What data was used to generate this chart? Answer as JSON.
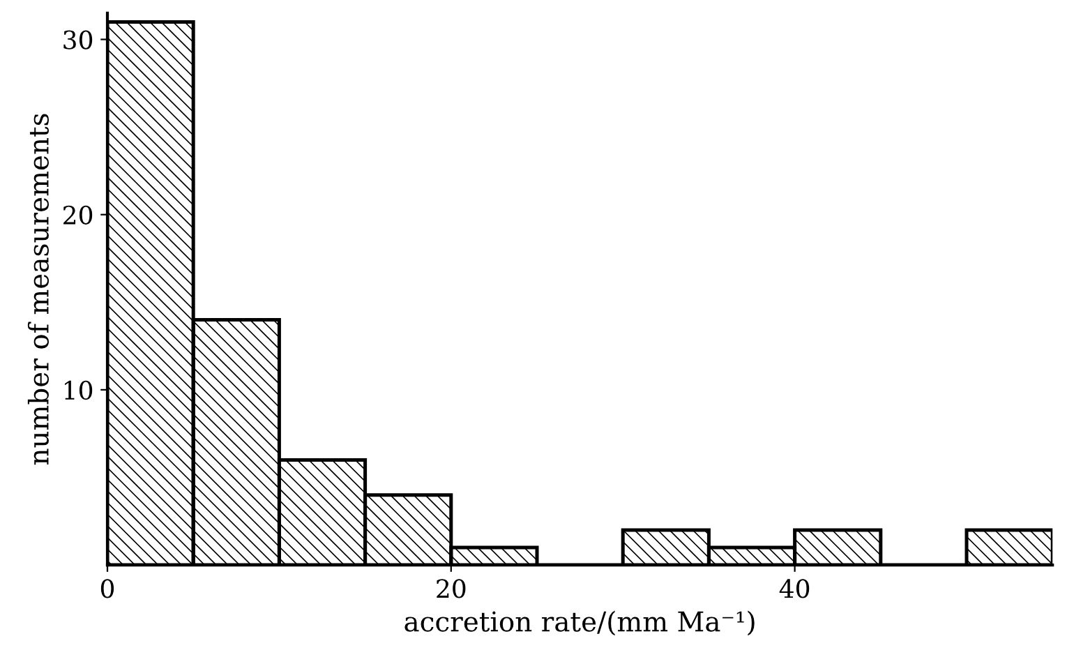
{
  "chart_data": {
    "type": "histogram",
    "xlabel": "accretion rate/(mm Ma⁻¹)",
    "ylabel": "number of measurements",
    "bins": [
      0,
      5,
      10,
      15,
      20,
      25,
      30,
      35,
      40,
      45,
      50,
      55
    ],
    "values": [
      31,
      14,
      6,
      4,
      1,
      0,
      2,
      1,
      2,
      0,
      2
    ],
    "color": "#000000",
    "xlim": [
      0,
      55
    ],
    "xticks": [
      0,
      20,
      40
    ],
    "ylim": [
      0,
      31.5
    ],
    "yticks": [
      10,
      20,
      30
    ],
    "grid": false,
    "legend": false
  }
}
